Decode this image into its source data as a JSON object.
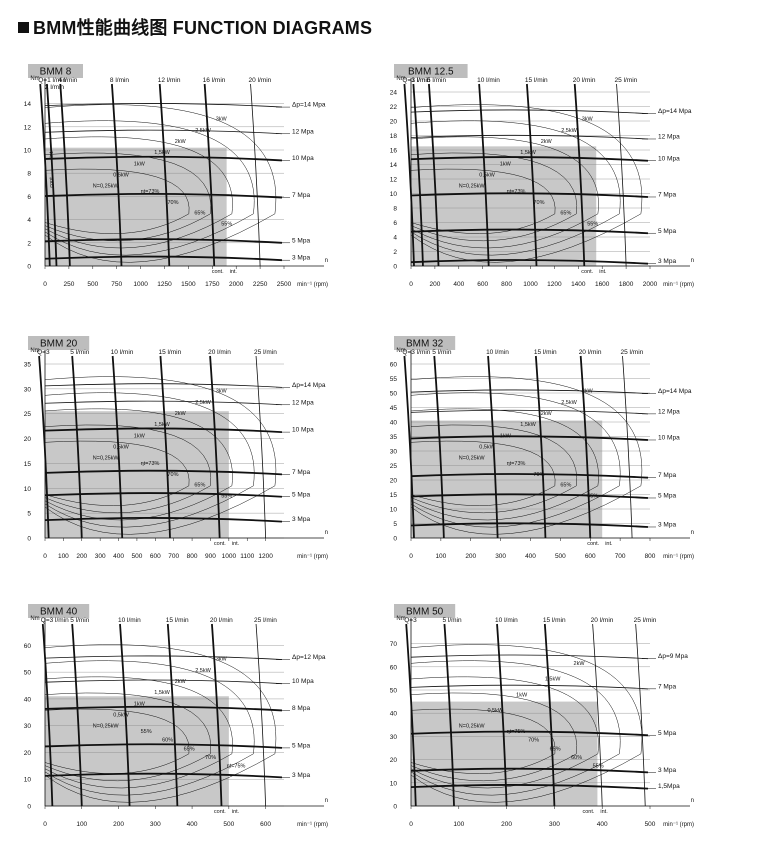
{
  "page": {
    "title": "BMM性能曲线图 FUNCTION DIAGRAMS"
  },
  "colors": {
    "region_fill": "#c8c8c8",
    "tab_fill": "#bdbdbd",
    "ink": "#111111"
  },
  "chart_data": [
    {
      "type": "line",
      "title": "BMM 8",
      "ylabel": "Nm",
      "xunit": "min⁻¹ (rpm)",
      "xticks": [
        0,
        250,
        500,
        750,
        1000,
        1250,
        1500,
        1750,
        2000,
        2250,
        2500
      ],
      "yticks": [
        0,
        2,
        4,
        6,
        8,
        10,
        12,
        14
      ],
      "xlim": [
        0,
        2500
      ],
      "ylim": [
        0,
        15
      ],
      "flows": [
        {
          "label": "Q=1",
          "unit": "l/min",
          "rpm": 50
        },
        {
          "label": "2",
          "unit": "l/min",
          "rpm": 120
        },
        {
          "label": "4",
          "unit": "l/min",
          "rpm": 260
        },
        {
          "label": "8",
          "unit": "l/min",
          "rpm": 800
        },
        {
          "label": "12",
          "unit": "l/min",
          "rpm": 1300
        },
        {
          "label": "16",
          "unit": "l/min",
          "rpm": 1770
        },
        {
          "label": "20",
          "unit": "l/min",
          "rpm": 2250
        }
      ],
      "pressures": [
        {
          "label": "Δp=14 Mpa",
          "torque": 14.0
        },
        {
          "label": "12 Mpa",
          "torque": 11.7
        },
        {
          "label": "10 Mpa",
          "torque": 9.4
        },
        {
          "label": "7 Mpa",
          "torque": 6.2
        },
        {
          "label": "5 Mpa",
          "torque": 2.3
        },
        {
          "label": "3 Mpa",
          "torque": 0.8
        }
      ],
      "cont_region": {
        "torque": 10.2,
        "rpm": 1900
      },
      "power_labels": [
        "N=0,25kW",
        "0,5kW",
        "1kW",
        "1,5kW",
        "2kW",
        "2,5kW",
        "3kW"
      ],
      "efficiency_labels": [
        "ηt=73%",
        "70%",
        "65%",
        "55%"
      ],
      "region_labels": [
        "cont.",
        "int.",
        "int.",
        "cont."
      ]
    },
    {
      "type": "line",
      "title": "BMM 12.5",
      "ylabel": "Nm",
      "xunit": "min⁻¹ (rpm)",
      "xticks": [
        0,
        200,
        400,
        600,
        800,
        1000,
        1200,
        1400,
        1600,
        1800,
        2000
      ],
      "yticks": [
        0,
        2,
        4,
        6,
        8,
        10,
        12,
        14,
        16,
        18,
        20,
        22,
        24
      ],
      "xlim": [
        0,
        2000
      ],
      "ylim": [
        0,
        24
      ],
      "flows": [
        {
          "label": "Q=1",
          "unit": "l/min",
          "rpm": 25
        },
        {
          "label": "3",
          "unit": "l/min",
          "rpm": 100
        },
        {
          "label": "5",
          "unit": "l/min",
          "rpm": 230
        },
        {
          "label": "10",
          "unit": "l/min",
          "rpm": 650
        },
        {
          "label": "15",
          "unit": "l/min",
          "rpm": 1050
        },
        {
          "label": "20",
          "unit": "l/min",
          "rpm": 1450
        },
        {
          "label": "25",
          "unit": "l/min",
          "rpm": 1800
        }
      ],
      "pressures": [
        {
          "label": "Δp=14 Mpa",
          "torque": 21.5
        },
        {
          "label": "12 Mpa",
          "torque": 18.0
        },
        {
          "label": "10 Mpa",
          "torque": 15.0
        },
        {
          "label": "7 Mpa",
          "torque": 10.0
        },
        {
          "label": "5 Mpa",
          "torque": 5.0
        },
        {
          "label": "3 Mpa",
          "torque": 0.8
        }
      ],
      "cont_region": {
        "torque": 16.5,
        "rpm": 1550
      },
      "power_labels": [
        "N=0,25kW",
        "0,5kW",
        "1kW",
        "1,5kW",
        "2kW",
        "2,5kW",
        "3kW"
      ],
      "efficiency_labels": [
        "ηt=73%",
        "70%",
        "65%",
        "55%"
      ],
      "region_labels": [
        "cont.",
        "int."
      ]
    },
    {
      "type": "line",
      "title": "BMM 20",
      "ylabel": "Nm",
      "xunit": "min⁻¹ (rpm)",
      "xticks": [
        0,
        100,
        200,
        300,
        400,
        500,
        600,
        700,
        800,
        900,
        1000,
        1100,
        1200
      ],
      "yticks": [
        0,
        5,
        10,
        15,
        20,
        25,
        30,
        35
      ],
      "xlim": [
        0,
        1300
      ],
      "ylim": [
        0,
        35
      ],
      "flows": [
        {
          "label": "Q=3",
          "unit": "",
          "rpm": 20
        },
        {
          "label": "5",
          "unit": "l/min",
          "rpm": 200
        },
        {
          "label": "10",
          "unit": "l/min",
          "rpm": 420
        },
        {
          "label": "15",
          "unit": "l/min",
          "rpm": 680
        },
        {
          "label": "20",
          "unit": "l/min",
          "rpm": 950
        },
        {
          "label": "25",
          "unit": "l/min",
          "rpm": 1200
        }
      ],
      "pressures": [
        {
          "label": "Δp=14 Mpa",
          "torque": 31.0
        },
        {
          "label": "12 Mpa",
          "torque": 27.5
        },
        {
          "label": "10 Mpa",
          "torque": 22.0
        },
        {
          "label": "7 Mpa",
          "torque": 13.5
        },
        {
          "label": "5 Mpa",
          "torque": 9.0
        },
        {
          "label": "3 Mpa",
          "torque": 4.0
        }
      ],
      "cont_region": {
        "torque": 25.5,
        "rpm": 1000
      },
      "power_labels": [
        "N=0,25kW",
        "0,5kW",
        "1kW",
        "1,5kW",
        "2kW",
        "2,5kW",
        "3kW"
      ],
      "efficiency_labels": [
        "ηt=73%",
        "70%",
        "65%",
        "55%"
      ],
      "region_labels": [
        "cont.",
        "int."
      ]
    },
    {
      "type": "line",
      "title": "BMM 32",
      "ylabel": "Nm",
      "xunit": "min⁻¹ (rpm)",
      "xticks": [
        0,
        100,
        200,
        300,
        400,
        500,
        600,
        700,
        800
      ],
      "yticks": [
        0,
        5,
        10,
        15,
        20,
        25,
        30,
        35,
        40,
        45,
        50,
        55,
        60
      ],
      "xlim": [
        0,
        800
      ],
      "ylim": [
        0,
        60
      ],
      "flows": [
        {
          "label": "Q=3",
          "unit": "l/min",
          "rpm": 10
        },
        {
          "label": "5",
          "unit": "l/min",
          "rpm": 110
        },
        {
          "label": "10",
          "unit": "l/min",
          "rpm": 290
        },
        {
          "label": "15",
          "unit": "l/min",
          "rpm": 450
        },
        {
          "label": "20",
          "unit": "l/min",
          "rpm": 600
        },
        {
          "label": "25",
          "unit": "l/min",
          "rpm": 740
        }
      ],
      "pressures": [
        {
          "label": "Δp=14 Mpa",
          "torque": 51.0
        },
        {
          "label": "12 Mpa",
          "torque": 44.0
        },
        {
          "label": "10 Mpa",
          "torque": 35.0
        },
        {
          "label": "7 Mpa",
          "torque": 22.0
        },
        {
          "label": "5 Mpa",
          "torque": 15.0
        },
        {
          "label": "3 Mpa",
          "torque": 5.0
        }
      ],
      "cont_region": {
        "torque": 40.5,
        "rpm": 640
      },
      "power_labels": [
        "N=0,25kW",
        "0,5kW",
        "1kW",
        "1,5kW",
        "2kW",
        "2,5kW",
        "3kW"
      ],
      "efficiency_labels": [
        "ηt=73%",
        "70%",
        "65%",
        "55%"
      ],
      "region_labels": [
        "cont.",
        "int."
      ]
    },
    {
      "type": "line",
      "title": "BMM 40",
      "ylabel": "Nm",
      "xunit": "min⁻¹ (rpm)",
      "xticks": [
        0,
        100,
        200,
        300,
        400,
        500,
        600
      ],
      "yticks": [
        0,
        10,
        20,
        30,
        40,
        50,
        60
      ],
      "xlim": [
        0,
        650
      ],
      "ylim": [
        0,
        65
      ],
      "flows": [
        {
          "label": "Q=3",
          "unit": "l/min",
          "rpm": 20
        },
        {
          "label": "5",
          "unit": "l/min",
          "rpm": 100
        },
        {
          "label": "10",
          "unit": "l/min",
          "rpm": 230
        },
        {
          "label": "15",
          "unit": "l/min",
          "rpm": 360
        },
        {
          "label": "20",
          "unit": "l/min",
          "rpm": 480
        },
        {
          "label": "25",
          "unit": "l/min",
          "rpm": 600
        }
      ],
      "pressures": [
        {
          "label": "Δp=12 Mpa",
          "torque": 56.0
        },
        {
          "label": "10 Mpa",
          "torque": 47.0
        },
        {
          "label": "8 Mpa",
          "torque": 37.0
        },
        {
          "label": "5 Mpa",
          "torque": 23.0
        },
        {
          "label": "3 Mpa",
          "torque": 12.0
        }
      ],
      "cont_region": {
        "torque": 41.0,
        "rpm": 500
      },
      "power_labels": [
        "N=0,25kW",
        "0,5kW",
        "1kW",
        "1,5kW",
        "2kW",
        "2,5kW",
        "3kW"
      ],
      "efficiency_labels": [
        "55%",
        "60%",
        "65%",
        "70%",
        "ηt=75%"
      ],
      "region_labels": [
        "cont.",
        "int."
      ]
    },
    {
      "type": "line",
      "title": "BMM 50",
      "ylabel": "Nm",
      "xunit": "min⁻¹ (rpm)",
      "xticks": [
        0,
        100,
        200,
        300,
        400,
        500
      ],
      "yticks": [
        0,
        10,
        20,
        30,
        40,
        50,
        60,
        70
      ],
      "xlim": [
        0,
        500
      ],
      "ylim": [
        0,
        75
      ],
      "flows": [
        {
          "label": "Q=3",
          "unit": "",
          "rpm": 10
        },
        {
          "label": "5",
          "unit": "l/min",
          "rpm": 90
        },
        {
          "label": "10",
          "unit": "l/min",
          "rpm": 200
        },
        {
          "label": "15",
          "unit": "l/min",
          "rpm": 300
        },
        {
          "label": "20",
          "unit": "l/min",
          "rpm": 400
        },
        {
          "label": "25",
          "unit": "l/min",
          "rpm": 490
        }
      ],
      "pressures": [
        {
          "label": "Δp=9 Mpa",
          "torque": 65.0
        },
        {
          "label": "7 Mpa",
          "torque": 52.0
        },
        {
          "label": "5 Mpa",
          "torque": 32.0
        },
        {
          "label": "3 Mpa",
          "torque": 16.0
        },
        {
          "label": "1,5Mpa",
          "torque": 9.0
        }
      ],
      "cont_region": {
        "torque": 45.0,
        "rpm": 390
      },
      "power_labels": [
        "N=0,25kW",
        "0,5kW",
        "1kW",
        "1,5kW",
        "2kW"
      ],
      "efficiency_labels": [
        "ηt=75%",
        "70%",
        "65%",
        "60%",
        "55%"
      ],
      "region_labels": [
        "cont.",
        "int."
      ]
    }
  ]
}
